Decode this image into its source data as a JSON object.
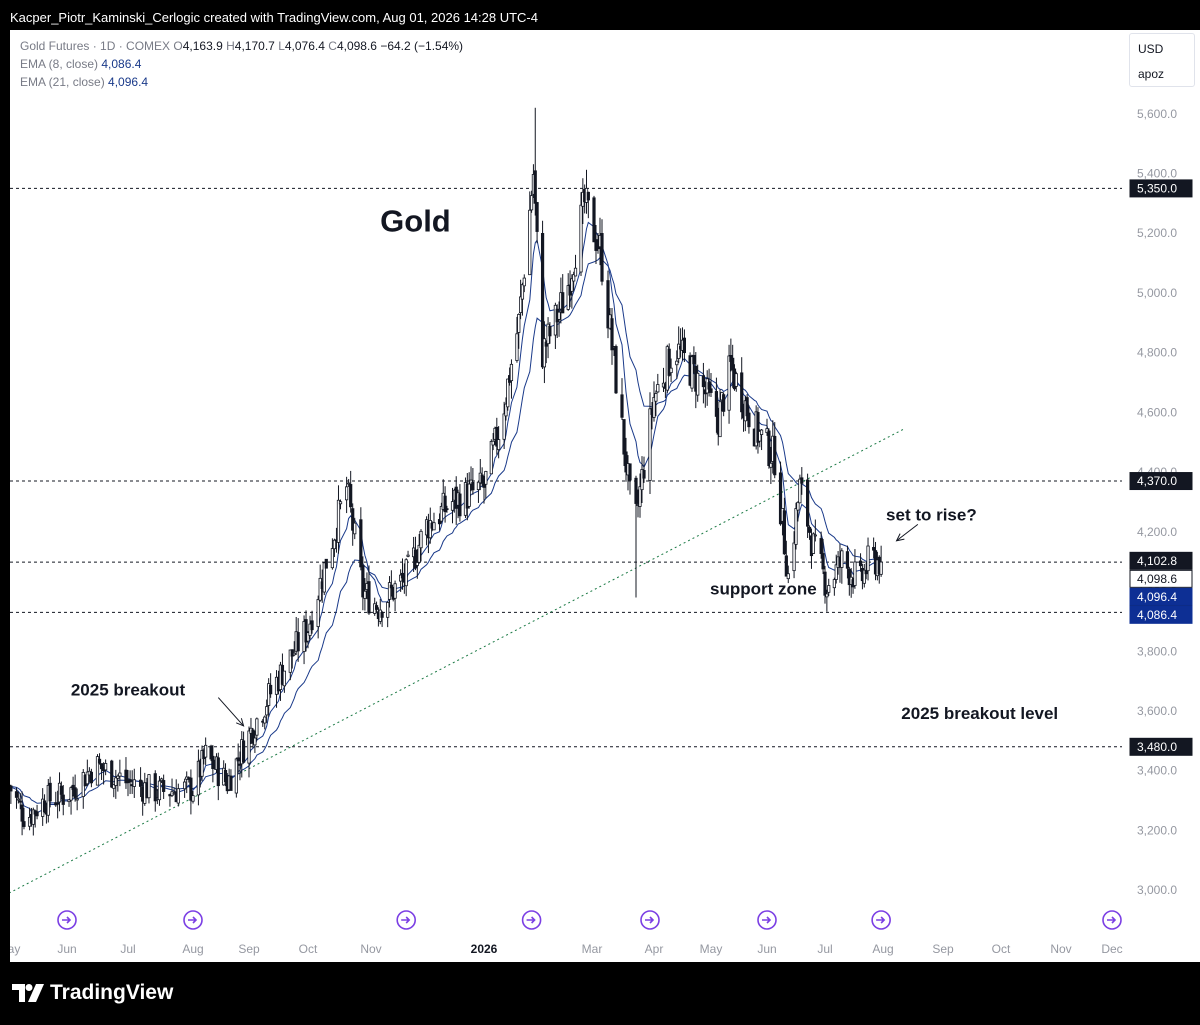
{
  "header": {
    "credit": "Kacper_Piotr_Kaminski_Cerlogic created with TradingView.com, Aug 01, 2026 14:28 UTC-4"
  },
  "legend": {
    "symbol": "Gold Futures · 1D · COMEX",
    "open_label": "O",
    "open": "4,163.9",
    "high_label": "H",
    "high": "4,170.7",
    "low_label": "L",
    "low": "4,076.4",
    "close_label": "C",
    "close": "4,098.6",
    "change": "−64.2 (−1.54%)",
    "ema1_label": "EMA (8, close)",
    "ema1_value": "4,086.4",
    "ema2_label": "EMA (21, close)",
    "ema2_value": "4,096.4"
  },
  "currency": {
    "code": "USD",
    "unit": "apoz"
  },
  "footer": {
    "brand": "TradingView",
    "logo_icon": "tradingview-logo-icon"
  },
  "colors": {
    "candle": "#131722",
    "ema": "#1a3a8a",
    "trendline": "#1b7a45",
    "event_icon": "#7b3fe4",
    "axis_text": "#9598a1",
    "badge_dark": "#131722",
    "badge_blue": "#0d2f94"
  },
  "chart_data": {
    "type": "candlestick",
    "title": "Gold",
    "interval": "1D",
    "y_range": [
      2900,
      5780
    ],
    "y_ticks": [
      3000,
      3200,
      3400,
      3600,
      3800,
      4000,
      4200,
      4400,
      4600,
      4800,
      5000,
      5200,
      5400,
      5600
    ],
    "y_tick_labels": [
      "3,000.0",
      "3,200.0",
      "3,400.0",
      "3,600.0",
      "3,800.0",
      "4,000.0",
      "4,200.0",
      "4,400.0",
      "4,600.0",
      "4,800.0",
      "5,000.0",
      "5,200.0",
      "5,400.0",
      "5,600.0"
    ],
    "x_ticks": [
      {
        "label": "May",
        "date": "2025-05-01",
        "bold": false
      },
      {
        "label": "Jun",
        "date": "2025-06-01",
        "bold": false
      },
      {
        "label": "Jul",
        "date": "2025-07-01",
        "bold": false
      },
      {
        "label": "Aug",
        "date": "2025-08-01",
        "bold": false
      },
      {
        "label": "Sep",
        "date": "2025-09-01",
        "bold": false
      },
      {
        "label": "Oct",
        "date": "2025-10-01",
        "bold": false
      },
      {
        "label": "Nov",
        "date": "2025-11-01",
        "bold": false
      },
      {
        "label": "2026",
        "date": "2026-01-01",
        "bold": true
      },
      {
        "label": "Mar",
        "date": "2026-03-01",
        "bold": false
      },
      {
        "label": "Apr",
        "date": "2026-04-01",
        "bold": false
      },
      {
        "label": "May",
        "date": "2026-05-01",
        "bold": false
      },
      {
        "label": "Jun",
        "date": "2026-06-01",
        "bold": false
      },
      {
        "label": "Jul",
        "date": "2026-07-01",
        "bold": false
      },
      {
        "label": "Aug",
        "date": "2026-08-01",
        "bold": false
      },
      {
        "label": "Sep",
        "date": "2026-09-01",
        "bold": false
      },
      {
        "label": "Oct",
        "date": "2026-10-01",
        "bold": false
      },
      {
        "label": "Nov",
        "date": "2026-11-01",
        "bold": false
      },
      {
        "label": "Dec",
        "date": "2026-12-01",
        "bold": false
      }
    ],
    "x_range": [
      "2025-05-01",
      "2026-12-01"
    ],
    "price_path": [
      {
        "date": "2025-05-01",
        "close": 3350
      },
      {
        "date": "2025-05-10",
        "close": 3240
      },
      {
        "date": "2025-05-20",
        "close": 3300
      },
      {
        "date": "2025-06-01",
        "close": 3320
      },
      {
        "date": "2025-06-15",
        "close": 3420
      },
      {
        "date": "2025-07-01",
        "close": 3360
      },
      {
        "date": "2025-07-15",
        "close": 3330
      },
      {
        "date": "2025-08-01",
        "close": 3340
      },
      {
        "date": "2025-08-08",
        "close": 3450
      },
      {
        "date": "2025-08-20",
        "close": 3360
      },
      {
        "date": "2025-08-29",
        "close": 3480
      },
      {
        "date": "2025-09-15",
        "close": 3700
      },
      {
        "date": "2025-10-01",
        "close": 3880
      },
      {
        "date": "2025-10-20",
        "close": 4350
      },
      {
        "date": "2025-10-28",
        "close": 4000
      },
      {
        "date": "2025-11-05",
        "close": 3950
      },
      {
        "date": "2025-11-20",
        "close": 4050
      },
      {
        "date": "2025-12-01",
        "close": 4220
      },
      {
        "date": "2025-12-15",
        "close": 4300
      },
      {
        "date": "2026-01-01",
        "close": 4350
      },
      {
        "date": "2026-01-10",
        "close": 4560
      },
      {
        "date": "2026-01-20",
        "close": 4900
      },
      {
        "date": "2026-01-28",
        "close": 5400
      },
      {
        "date": "2026-02-02",
        "close": 4800
      },
      {
        "date": "2026-02-15",
        "close": 5000
      },
      {
        "date": "2026-02-25",
        "close": 5300
      },
      {
        "date": "2026-03-05",
        "close": 5150
      },
      {
        "date": "2026-03-15",
        "close": 4600
      },
      {
        "date": "2026-03-22",
        "close": 4200
      },
      {
        "date": "2026-04-01",
        "close": 4650
      },
      {
        "date": "2026-04-12",
        "close": 4820
      },
      {
        "date": "2026-04-25",
        "close": 4700
      },
      {
        "date": "2026-05-05",
        "close": 4580
      },
      {
        "date": "2026-05-12",
        "close": 4750
      },
      {
        "date": "2026-05-25",
        "close": 4550
      },
      {
        "date": "2026-06-05",
        "close": 4450
      },
      {
        "date": "2026-06-12",
        "close": 4050
      },
      {
        "date": "2026-06-18",
        "close": 4350
      },
      {
        "date": "2026-06-25",
        "close": 4150
      },
      {
        "date": "2026-07-02",
        "close": 4020
      },
      {
        "date": "2026-07-10",
        "close": 4100
      },
      {
        "date": "2026-07-20",
        "close": 4030
      },
      {
        "date": "2026-07-25",
        "close": 4110
      },
      {
        "date": "2026-07-31",
        "close": 4098.6
      }
    ],
    "extreme_wicks": [
      {
        "date": "2026-01-29",
        "high": 5620
      },
      {
        "date": "2026-03-23",
        "low": 3980
      },
      {
        "date": "2026-02-01",
        "low": 4430
      }
    ],
    "horizontal_levels": [
      {
        "value": 5350,
        "label": "5,350.0"
      },
      {
        "value": 4370,
        "label": "4,370.0"
      },
      {
        "value": 4098.6,
        "label": "4,098.6"
      },
      {
        "value": 3930,
        "label": "3,930.0"
      },
      {
        "value": 3480,
        "label": "3,480.0"
      }
    ],
    "price_badges": [
      {
        "value": 4102.8,
        "label": "4,102.8",
        "style": "dark"
      },
      {
        "value": 4098.6,
        "label": "4,098.6",
        "style": "light"
      },
      {
        "value": 4096.4,
        "label": "4,096.4",
        "style": "blue"
      },
      {
        "value": 4086.4,
        "label": "4,086.4",
        "style": "blue"
      }
    ],
    "trendline": {
      "start": {
        "date": "2025-05-01",
        "price": 2990
      },
      "end": {
        "date": "2026-08-12",
        "price": 4545
      }
    },
    "annotations": [
      {
        "text": "Gold",
        "date": "2025-11-25",
        "price": 5205,
        "size": "large"
      },
      {
        "text": "2025 breakout",
        "date": "2025-07-01",
        "price": 3652
      },
      {
        "text": "support zone",
        "date": "2026-05-30",
        "price": 3990
      },
      {
        "text": "set to rise?",
        "date": "2026-08-26",
        "price": 4238
      },
      {
        "text": "2025 breakout level",
        "date": "2026-09-20",
        "price": 3573
      }
    ],
    "arrows": [
      {
        "from": {
          "date": "2025-08-15",
          "price": 3645
        },
        "to": {
          "date": "2025-08-29",
          "price": 3550
        }
      },
      {
        "from": {
          "date": "2026-08-19",
          "price": 4225
        },
        "to": {
          "date": "2026-08-08",
          "price": 4170
        }
      }
    ],
    "event_markers": [
      "2025-06-01",
      "2025-08-01",
      "2025-11-20",
      "2026-01-27",
      "2026-03-30",
      "2026-06-01",
      "2026-07-31",
      "2026-12-01"
    ]
  }
}
